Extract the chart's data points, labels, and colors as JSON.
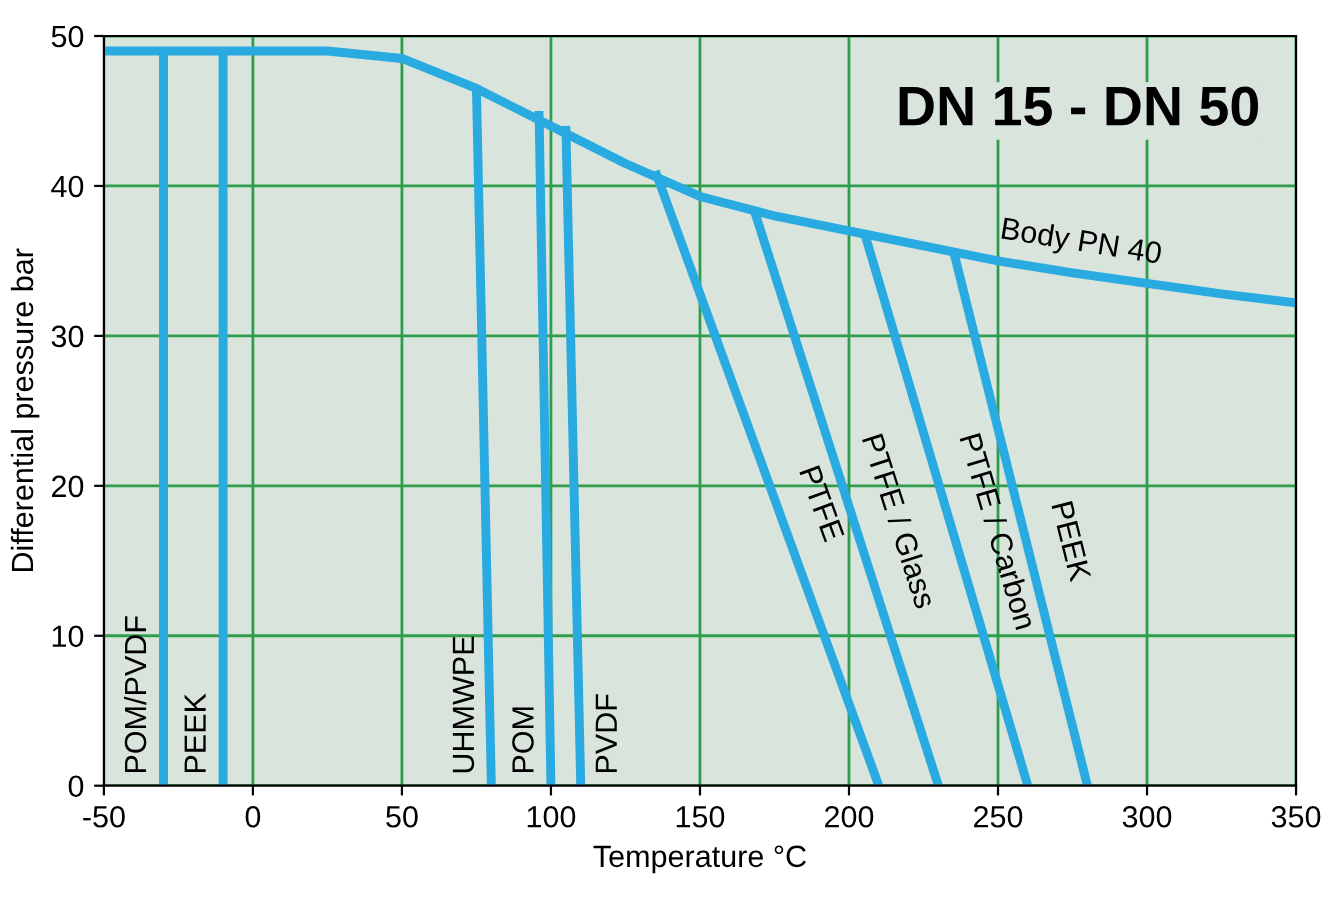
{
  "chart_data": {
    "type": "line",
    "title": "DN 15 - DN 50",
    "xlabel": "Temperature °C",
    "ylabel": "Differential pressure bar",
    "xlim": [
      -50,
      350
    ],
    "ylim": [
      0,
      50
    ],
    "xticks": [
      -50,
      0,
      50,
      100,
      150,
      200,
      250,
      300,
      350
    ],
    "yticks": [
      0,
      10,
      20,
      30,
      40,
      50
    ],
    "grid": true,
    "marker": "none",
    "line_style": "solid",
    "series": [
      {
        "name": "Body PN 40",
        "color": "#29aae1",
        "x": [
          -50,
          0,
          25,
          50,
          75,
          100,
          125,
          150,
          175,
          200,
          225,
          250,
          275,
          300,
          325,
          350
        ],
        "values": [
          49,
          49,
          49,
          48.5,
          46.5,
          44,
          41.5,
          39.3,
          38,
          37,
          36,
          35,
          34.2,
          33.5,
          32.8,
          32.2
        ]
      },
      {
        "name": "POM/PVDF",
        "color": "#29aae1",
        "x": [
          -30,
          -30
        ],
        "values": [
          49,
          0
        ]
      },
      {
        "name": "PEEK",
        "color": "#29aae1",
        "x": [
          -10,
          -10
        ],
        "values": [
          49,
          0
        ]
      },
      {
        "name": "UHMWPE",
        "color": "#29aae1",
        "x": [
          75,
          80
        ],
        "values": [
          46.5,
          0
        ]
      },
      {
        "name": "POM",
        "color": "#29aae1",
        "x": [
          96,
          100
        ],
        "values": [
          45,
          0
        ]
      },
      {
        "name": "PVDF",
        "color": "#29aae1",
        "x": [
          105,
          110
        ],
        "values": [
          44,
          0
        ]
      },
      {
        "name": "PTFE",
        "color": "#29aae1",
        "x": [
          135,
          210
        ],
        "values": [
          41,
          0
        ]
      },
      {
        "name": "PTFE / Glass",
        "color": "#29aae1",
        "x": [
          168,
          230
        ],
        "values": [
          38.5,
          0
        ]
      },
      {
        "name": "PTFE / Carbon",
        "color": "#29aae1",
        "x": [
          205,
          260
        ],
        "values": [
          37,
          0
        ]
      },
      {
        "name": "PEEK",
        "color": "#29aae1",
        "x": [
          235,
          280
        ],
        "values": [
          35.7,
          0
        ]
      }
    ]
  }
}
